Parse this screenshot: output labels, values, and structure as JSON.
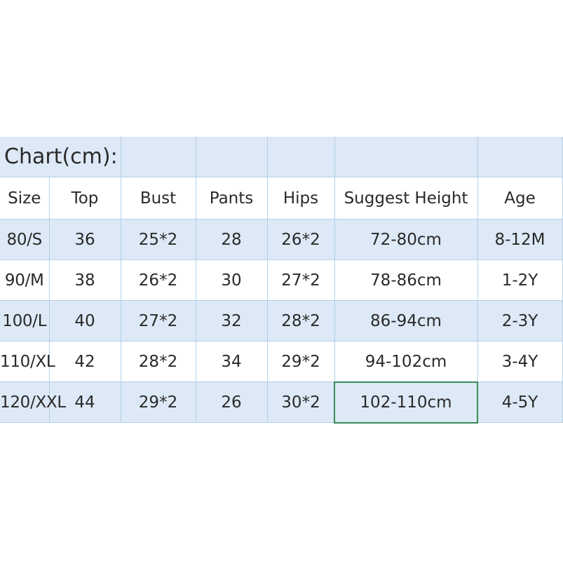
{
  "title": "Chart(cm):",
  "headers": [
    "Size",
    "Top",
    "Bust",
    "Pants",
    "Hips",
    "Suggest Height",
    "Age"
  ],
  "rows": [
    [
      "80/S",
      "36",
      "25*2",
      "28",
      "26*2",
      "72-80cm",
      "8-12M"
    ],
    [
      "90/M",
      "38",
      "26*2",
      "30",
      "27*2",
      "78-86cm",
      "1-2Y"
    ],
    [
      "100/L",
      "40",
      "27*2",
      "32",
      "28*2",
      "86-94cm",
      "2-3Y"
    ],
    [
      "110/XL",
      "42",
      "28*2",
      "34",
      "29*2",
      "94-102cm",
      "3-4Y"
    ],
    [
      "120/XXL",
      "44",
      "29*2",
      "26",
      "30*2",
      "102-110cm",
      "4-5Y"
    ]
  ],
  "colors": {
    "row_blue": "#dde9f6",
    "grid": "#b3cfe8",
    "selection": "#3a8a5a"
  },
  "selected_cell": "102-110cm"
}
